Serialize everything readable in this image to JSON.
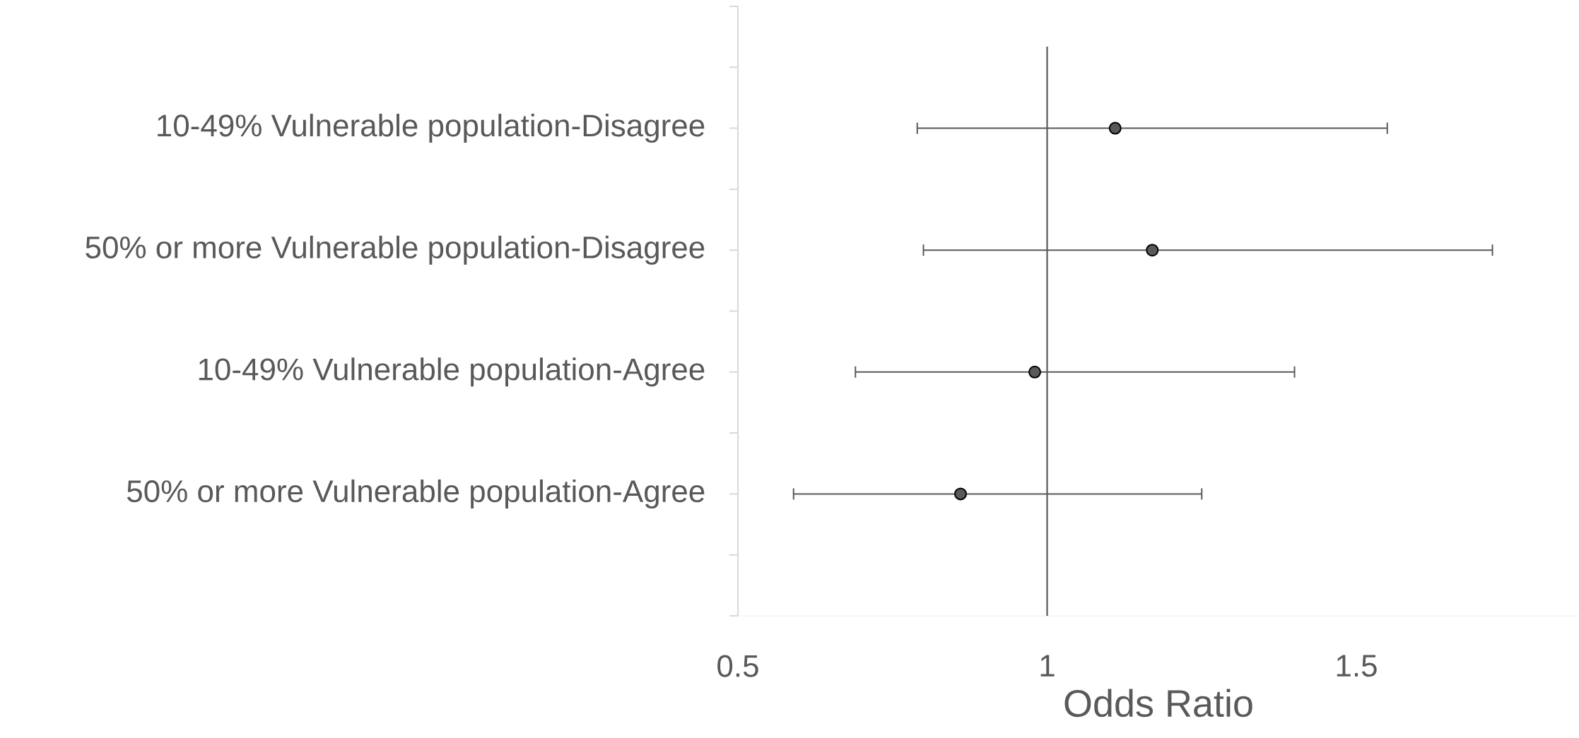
{
  "chart_data": {
    "type": "scatter",
    "orientation": "horizontal",
    "xlabel": "Odds Ratio",
    "categories": [
      "10-49% Vulnerable population-Disagree",
      "50% or more Vulnerable population-Disagree",
      "10-49% Vulnerable population-Agree",
      "50% or more Vulnerable population-Agree"
    ],
    "values": [
      1.11,
      1.17,
      0.98,
      0.86
    ],
    "errors": [
      [
        0.79,
        1.55
      ],
      [
        0.8,
        1.72
      ],
      [
        0.69,
        1.4
      ],
      [
        0.59,
        1.25
      ]
    ],
    "color": "#595959",
    "marker": "circle",
    "xlim": [
      0.5,
      1.86
    ],
    "xticks": [
      0.5,
      1,
      1.5
    ],
    "ref_lines": [
      {
        "axis": "x",
        "value": 1,
        "color": "#595959"
      }
    ]
  }
}
